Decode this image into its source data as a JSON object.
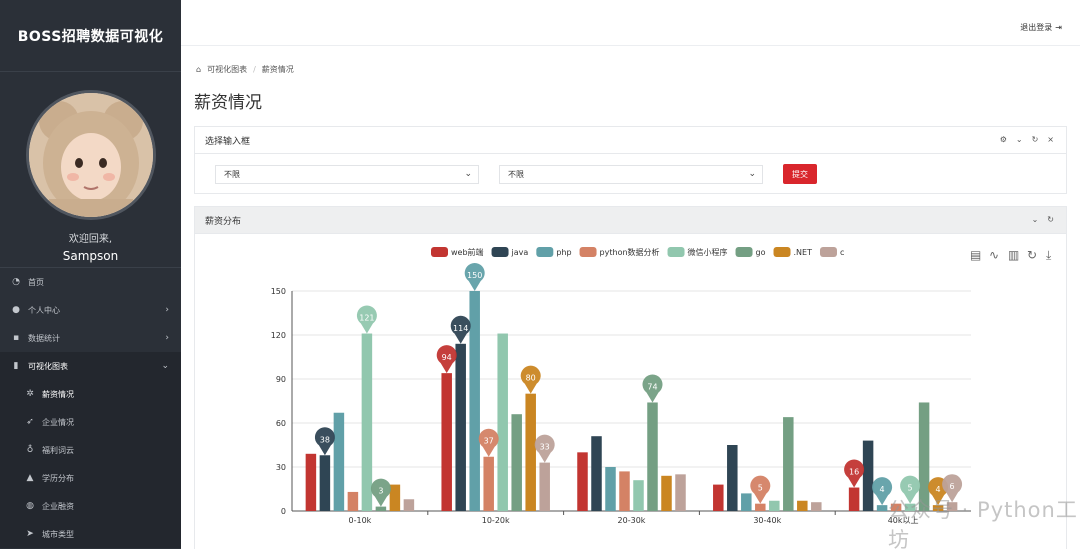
{
  "sidebar": {
    "brand": "BOSS招聘数据可视化",
    "welcome": "欢迎回来,",
    "username": "Sampson",
    "items": [
      {
        "label": "首页",
        "icon": "dashboard-icon"
      },
      {
        "label": "个人中心",
        "icon": "user-icon"
      },
      {
        "label": "数据统计",
        "icon": "grid-icon"
      },
      {
        "label": "可视化图表",
        "icon": "bar-chart-icon"
      }
    ],
    "subitems": [
      {
        "label": "薪资情况",
        "icon": "gear-icon"
      },
      {
        "label": "企业情况",
        "icon": "rocket-icon"
      },
      {
        "label": "福利词云",
        "icon": "bulb-icon"
      },
      {
        "label": "学历分布",
        "icon": "graduation-cap-icon"
      },
      {
        "label": "企业融资",
        "icon": "globe-icon"
      },
      {
        "label": "城市类型",
        "icon": "send-icon"
      }
    ]
  },
  "header": {
    "logout": "退出登录"
  },
  "breadcrumb": {
    "home": "可视化图表",
    "current": "薪资情况"
  },
  "page": {
    "title": "薪资情况"
  },
  "filter": {
    "title": "选择输入框",
    "select1": "不限",
    "select2": "不限",
    "submit": "提交"
  },
  "chart_panel": {
    "title": "薪资分布"
  },
  "watermark": "公众号 · Python工坊",
  "colors": [
    "#c23531",
    "#2f4554",
    "#61a0a8",
    "#d48265",
    "#91c7ae",
    "#749f83",
    "#ca8622",
    "#bda29a"
  ],
  "chart_data": {
    "type": "bar",
    "categories": [
      "0-10k",
      "10-20k",
      "20-30k",
      "30-40k",
      "40k以上"
    ],
    "ylim": [
      0,
      150
    ],
    "yticks": [
      0,
      30,
      60,
      90,
      120,
      150
    ],
    "legend_position": "top-center",
    "grid": true,
    "series": [
      {
        "name": "web前端",
        "values": [
          39,
          94,
          40,
          18,
          16
        ],
        "max_index": 1,
        "min_index": 4
      },
      {
        "name": "java",
        "values": [
          38,
          114,
          51,
          45,
          48
        ],
        "max_index": 1,
        "min_index": 0
      },
      {
        "name": "php",
        "values": [
          67,
          150,
          30,
          12,
          4
        ],
        "max_index": 1,
        "min_index": 4
      },
      {
        "name": "python数据分析",
        "values": [
          13,
          37,
          27,
          5,
          5
        ],
        "max_index": 1,
        "min_index": 3
      },
      {
        "name": "微信小程序",
        "values": [
          121,
          121,
          21,
          7,
          5
        ],
        "max_index": 0,
        "min_index": 4
      },
      {
        "name": "go",
        "values": [
          3,
          66,
          74,
          64,
          74
        ],
        "max_index": 2,
        "min_index": 0
      },
      {
        "name": ".NET",
        "values": [
          18,
          80,
          24,
          7,
          4
        ],
        "max_index": 1,
        "min_index": 4
      },
      {
        "name": "c",
        "values": [
          8,
          33,
          25,
          6,
          6
        ],
        "max_index": 1,
        "min_index": 4
      }
    ]
  }
}
